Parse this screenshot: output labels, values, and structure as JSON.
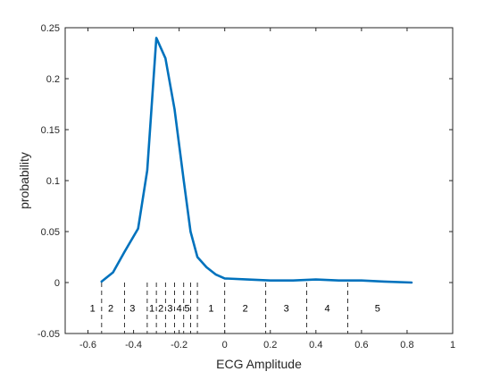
{
  "chart_data": {
    "type": "line",
    "title": "",
    "xlabel": "ECG Amplitude",
    "ylabel": "probability",
    "xlim": [
      -0.7,
      1.0
    ],
    "ylim": [
      -0.05,
      0.25
    ],
    "x_ticks": [
      -0.6,
      -0.4,
      -0.2,
      0,
      0.2,
      0.4,
      0.6,
      0.8,
      1
    ],
    "x_tick_labels": [
      "-0.6",
      "-0.4",
      "-0.2",
      "0",
      "0.2",
      "0.4",
      "0.6",
      "0.8",
      "1"
    ],
    "y_ticks": [
      -0.05,
      0,
      0.05,
      0.1,
      0.15,
      0.2,
      0.25
    ],
    "y_tick_labels": [
      "-0.05",
      "0",
      "0.05",
      "0.1",
      "0.15",
      "0.2",
      "0.25"
    ],
    "grid": false,
    "series": [
      {
        "color": "#0072bd",
        "x": [
          -0.54,
          -0.49,
          -0.44,
          -0.38,
          -0.34,
          -0.3,
          -0.26,
          -0.22,
          -0.18,
          -0.15,
          -0.12,
          -0.08,
          -0.04,
          0.0,
          0.1,
          0.2,
          0.3,
          0.4,
          0.5,
          0.6,
          0.7,
          0.82
        ],
        "y": [
          0.001,
          0.01,
          0.03,
          0.053,
          0.11,
          0.24,
          0.22,
          0.17,
          0.1,
          0.05,
          0.025,
          0.015,
          0.008,
          0.004,
          0.003,
          0.002,
          0.002,
          0.003,
          0.002,
          0.002,
          0.001,
          0.0
        ]
      }
    ],
    "region_boundaries": {
      "x": [
        -0.54,
        -0.44,
        -0.34,
        -0.3,
        -0.26,
        -0.22,
        -0.18,
        -0.15,
        -0.12,
        0.0,
        0.18,
        0.36,
        0.54
      ],
      "style": "dashed",
      "color": "#000000"
    },
    "region_labels": [
      {
        "text": "1",
        "x": -0.58
      },
      {
        "text": "2",
        "x": -0.5
      },
      {
        "text": "3",
        "x": -0.405
      },
      {
        "text": "1",
        "x": -0.32
      },
      {
        "text": "2",
        "x": -0.28
      },
      {
        "text": "3",
        "x": -0.24
      },
      {
        "text": "4",
        "x": -0.2
      },
      {
        "text": "5",
        "x": -0.165
      },
      {
        "text": "1",
        "x": -0.06
      },
      {
        "text": "2",
        "x": 0.09
      },
      {
        "text": "3",
        "x": 0.27
      },
      {
        "text": "4",
        "x": 0.45
      },
      {
        "text": "5",
        "x": 0.67
      }
    ],
    "region_label_y": -0.025
  }
}
